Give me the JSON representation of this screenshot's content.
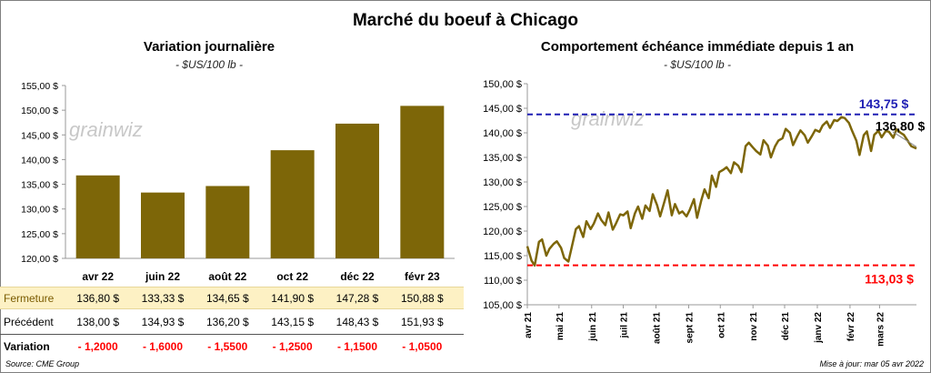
{
  "title": "Marché du boeuf à Chicago",
  "left": {
    "title": "Variation  journalière",
    "unit": "- $US/100 lb -"
  },
  "right": {
    "title": "Comportement  échéance immédiate depuis 1 an",
    "unit": "- $US/100 lb -"
  },
  "watermark": "grainwiz",
  "table": {
    "close_label": "Fermeture",
    "prev_label": "Précédent",
    "var_label": "Variation",
    "close": [
      "136,80  $",
      "133,33  $",
      "134,65  $",
      "141,90  $",
      "147,28  $",
      "150,88  $"
    ],
    "prev": [
      "138,00  $",
      "134,93  $",
      "136,20  $",
      "143,15  $",
      "148,43  $",
      "151,93  $"
    ],
    "var": [
      "- 1,2000",
      "- 1,6000",
      "- 1,5500",
      "- 1,2500",
      "- 1,1500",
      "- 1,0500"
    ]
  },
  "footer": {
    "source": "Source: CME Group",
    "updated": "Mise à jour: mar 05 avr 2022"
  },
  "colors": {
    "bar": "#7d6608",
    "line": "#7d6608",
    "high": "#1f1fb4",
    "low": "#ff0000"
  },
  "chart_data": [
    {
      "type": "bar",
      "categories": [
        "avr 22",
        "juin 22",
        "août 22",
        "oct 22",
        "déc 22",
        "févr 23"
      ],
      "values": [
        136.8,
        133.33,
        134.65,
        141.9,
        147.28,
        150.88
      ],
      "ylim": [
        120,
        155
      ],
      "yticks": [
        "120,00 $",
        "125,00 $",
        "130,00 $",
        "135,00 $",
        "140,00 $",
        "145,00 $",
        "150,00 $",
        "155,00 $"
      ],
      "ytick_values": [
        120,
        125,
        130,
        135,
        140,
        145,
        150,
        155
      ],
      "grid": false
    },
    {
      "type": "line",
      "ylim": [
        105,
        150
      ],
      "yticks": [
        "105,00 $",
        "110,00 $",
        "115,00 $",
        "120,00 $",
        "125,00 $",
        "130,00 $",
        "135,00 $",
        "140,00 $",
        "145,00 $",
        "150,00 $"
      ],
      "ytick_values": [
        105,
        110,
        115,
        120,
        125,
        130,
        135,
        140,
        145,
        150
      ],
      "xticks": [
        "avr 21",
        "mai 21",
        "juin 21",
        "juil 21",
        "août 21",
        "sept 21",
        "oct 21",
        "nov 21",
        "déc 21",
        "janv 22",
        "févr 22",
        "mars 22"
      ],
      "x_range": [
        "2021-04-01",
        "2022-04-05"
      ],
      "x_dates": [
        "2021-04-01",
        "2021-04-05",
        "2021-04-08",
        "2021-04-12",
        "2021-04-15",
        "2021-04-19",
        "2021-04-22",
        "2021-04-26",
        "2021-04-29",
        "2021-05-03",
        "2021-05-06",
        "2021-05-10",
        "2021-05-13",
        "2021-05-17",
        "2021-05-20",
        "2021-05-24",
        "2021-05-27",
        "2021-05-31",
        "2021-06-03",
        "2021-06-07",
        "2021-06-10",
        "2021-06-14",
        "2021-06-17",
        "2021-06-21",
        "2021-06-24",
        "2021-06-28",
        "2021-07-01",
        "2021-07-05",
        "2021-07-08",
        "2021-07-12",
        "2021-07-15",
        "2021-07-19",
        "2021-07-22",
        "2021-07-26",
        "2021-07-29",
        "2021-08-02",
        "2021-08-05",
        "2021-08-09",
        "2021-08-12",
        "2021-08-16",
        "2021-08-19",
        "2021-08-23",
        "2021-08-26",
        "2021-08-30",
        "2021-09-02",
        "2021-09-06",
        "2021-09-09",
        "2021-09-13",
        "2021-09-16",
        "2021-09-20",
        "2021-09-23",
        "2021-09-27",
        "2021-09-30",
        "2021-10-04",
        "2021-10-07",
        "2021-10-11",
        "2021-10-14",
        "2021-10-18",
        "2021-10-21",
        "2021-10-25",
        "2021-10-28",
        "2021-11-01",
        "2021-11-04",
        "2021-11-08",
        "2021-11-11",
        "2021-11-15",
        "2021-11-18",
        "2021-11-22",
        "2021-11-25",
        "2021-11-29",
        "2021-12-02",
        "2021-12-06",
        "2021-12-09",
        "2021-12-13",
        "2021-12-16",
        "2021-12-20",
        "2021-12-23",
        "2021-12-27",
        "2021-12-30",
        "2022-01-03",
        "2022-01-06",
        "2022-01-10",
        "2022-01-13",
        "2022-01-17",
        "2022-01-20",
        "2022-01-24",
        "2022-01-27",
        "2022-01-31",
        "2022-02-03",
        "2022-02-07",
        "2022-02-10",
        "2022-02-14",
        "2022-02-17",
        "2022-02-21",
        "2022-02-24",
        "2022-02-28",
        "2022-03-03",
        "2022-03-07",
        "2022-03-10",
        "2022-03-14",
        "2022-03-17",
        "2022-03-21",
        "2022-03-24",
        "2022-03-28",
        "2022-03-31",
        "2022-04-05"
      ],
      "values": [
        116.9,
        114.0,
        113.0,
        117.8,
        118.3,
        115.0,
        116.4,
        117.4,
        117.9,
        116.6,
        114.5,
        113.8,
        116.6,
        120.4,
        121.0,
        118.8,
        122.0,
        120.4,
        121.5,
        123.6,
        122.3,
        121.2,
        123.8,
        120.3,
        121.5,
        123.4,
        123.2,
        124.0,
        120.6,
        123.6,
        125.0,
        122.5,
        125.2,
        124.1,
        127.5,
        125.3,
        123.0,
        126.0,
        128.3,
        123.2,
        125.5,
        123.6,
        124.0,
        123.0,
        124.3,
        126.5,
        122.7,
        126.3,
        128.5,
        126.7,
        131.3,
        129.0,
        132.0,
        132.5,
        133.0,
        131.8,
        134.0,
        133.3,
        132.0,
        137.3,
        138.0,
        137.0,
        136.3,
        135.6,
        138.5,
        137.4,
        135.0,
        137.3,
        138.4,
        138.9,
        140.8,
        140.0,
        137.5,
        139.3,
        140.5,
        139.5,
        138.0,
        139.4,
        140.6,
        140.2,
        141.5,
        142.3,
        141.0,
        142.6,
        142.4,
        143.2,
        143.0,
        142.0,
        140.4,
        138.4,
        135.5,
        139.5,
        140.3,
        136.3,
        139.6,
        140.4,
        139.1,
        140.4,
        140.2,
        139.0,
        140.7,
        140.0,
        139.6,
        138.3,
        137.3,
        136.8
      ],
      "high": {
        "value": 143.75,
        "label": "143,75 $"
      },
      "low": {
        "value": 113.03,
        "label": "113,03 $"
      },
      "last": {
        "value": 136.8,
        "label": "136,80 $"
      },
      "grid": false
    }
  ]
}
